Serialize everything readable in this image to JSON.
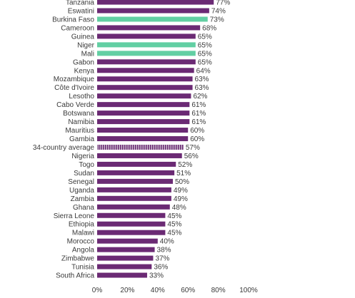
{
  "chart_data": {
    "type": "bar",
    "orientation": "horizontal",
    "categories": [
      "Tanzania",
      "Eswatini",
      "Burkina Faso",
      "Cameroon",
      "Guinea",
      "Niger",
      "Mali",
      "Gabon",
      "Kenya",
      "Mozambique",
      "Côte d'Ivoire",
      "Lesotho",
      "Cabo Verde",
      "Botswana",
      "Namibia",
      "Mauritius",
      "Gambia",
      "34-country average",
      "Nigeria",
      "Togo",
      "Sudan",
      "Senegal",
      "Uganda",
      "Zambia",
      "Ghana",
      "Sierra Leone",
      "Ethiopia",
      "Malawi",
      "Morocco",
      "Angola",
      "Zimbabwe",
      "Tunisia",
      "South Africa"
    ],
    "values": [
      77,
      74,
      73,
      68,
      65,
      65,
      65,
      65,
      64,
      63,
      63,
      62,
      61,
      61,
      61,
      60,
      60,
      57,
      56,
      52,
      51,
      50,
      49,
      49,
      48,
      45,
      45,
      45,
      40,
      38,
      37,
      36,
      33
    ],
    "value_labels": [
      "77%",
      "74%",
      "73%",
      "68%",
      "65%",
      "65%",
      "65%",
      "65%",
      "64%",
      "63%",
      "63%",
      "62%",
      "61%",
      "61%",
      "61%",
      "60%",
      "60%",
      "57%",
      "56%",
      "52%",
      "51%",
      "50%",
      "49%",
      "49%",
      "48%",
      "45%",
      "45%",
      "45%",
      "40%",
      "38%",
      "37%",
      "36%",
      "33%"
    ],
    "bar_styles": [
      "default",
      "default",
      "highlight",
      "default",
      "default",
      "highlight",
      "highlight",
      "default",
      "default",
      "default",
      "default",
      "default",
      "default",
      "default",
      "default",
      "default",
      "default",
      "average",
      "default",
      "default",
      "default",
      "default",
      "default",
      "default",
      "default",
      "default",
      "default",
      "default",
      "default",
      "default",
      "default",
      "default",
      "default"
    ],
    "xlim": [
      0,
      100
    ],
    "x_ticks": [
      0,
      20,
      40,
      60,
      80,
      100
    ],
    "x_tick_labels": [
      "0%",
      "20%",
      "40%",
      "60%",
      "80%",
      "100%"
    ],
    "grid": false,
    "colors": {
      "default": "#6b2a74",
      "highlight": "#62cfa3",
      "average_fill": "#c9b8cc",
      "average_stripe": "#6b2a74"
    }
  }
}
